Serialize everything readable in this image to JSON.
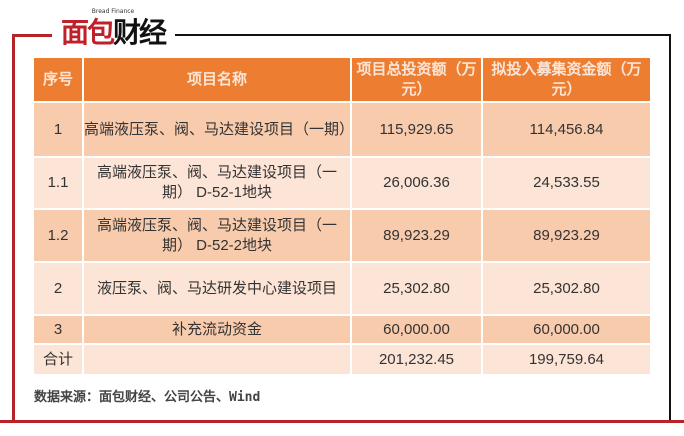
{
  "logo": {
    "cn": "面包财经",
    "en": "Bread Finance"
  },
  "table": {
    "headers": [
      "序号",
      "项目名称",
      "项目总投资额（万元）",
      "拟投入募集资金额（万元）"
    ],
    "rows": [
      {
        "no": "1",
        "name": "高端液压泵、阀、马达建设项目（一期）",
        "total": "115,929.65",
        "raised": "114,456.84"
      },
      {
        "no": "1.1",
        "name": "高端液压泵、阀、马达建设项目（一期） D-52-1地块",
        "total": "26,006.36",
        "raised": "24,533.55"
      },
      {
        "no": "1.2",
        "name": "高端液压泵、阀、马达建设项目（一期） D-52-2地块",
        "total": "89,923.29",
        "raised": "89,923.29"
      },
      {
        "no": "2",
        "name": "液压泵、阀、马达研发中心建设项目",
        "total": "25,302.80",
        "raised": "25,302.80"
      },
      {
        "no": "3",
        "name": "补充流动资金",
        "total": "60,000.00",
        "raised": "60,000.00"
      },
      {
        "no": "合计",
        "name": "",
        "total": "201,232.45",
        "raised": "199,759.64"
      }
    ]
  },
  "source": "数据来源：面包财经、公司公告、Wind",
  "colors": {
    "header": "#ed7d31",
    "row_dark": "#f8cbad",
    "row_light": "#fce4d6",
    "brand_red": "#c0202a"
  }
}
